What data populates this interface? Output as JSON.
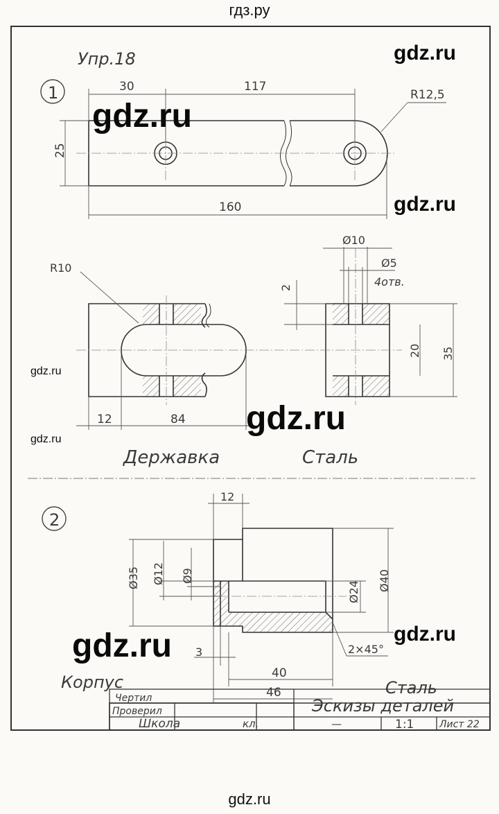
{
  "site": {
    "top_label": "гдз.ру",
    "bottom_label": "gdz.ru"
  },
  "watermarks": [
    "gdz.ru",
    "gdz.ru",
    "gdz.ru",
    "gdz.ru",
    "gdz.ru",
    "gdz.ru",
    "gdz.ru"
  ],
  "exercise": {
    "title": "Упр.18"
  },
  "part1": {
    "number": "1",
    "dims": {
      "d30": "30",
      "d117": "117",
      "r12_5": "R12,5",
      "d25": "25",
      "d160": "160",
      "phi10": "Ø10",
      "phi5": "Ø5",
      "holes": "4отв.",
      "r10": "R10",
      "d2": "2",
      "d20": "20",
      "d35": "35",
      "d12": "12",
      "d84": "84"
    },
    "name": "Державка",
    "material": "Сталь"
  },
  "part2": {
    "number": "2",
    "dims": {
      "d12": "12",
      "phi35": "Ø35",
      "phi12": "Ø12",
      "phi9": "Ø9",
      "phi24": "Ø24",
      "phi40": "Ø40",
      "d3": "3",
      "chamfer": "2×45°",
      "d40": "40",
      "d46": "46"
    },
    "name": "Корпус",
    "material": "Сталь"
  },
  "title_block": {
    "drew": "Чертил",
    "checked": "Проверил",
    "school": "Школа",
    "class": "кл.",
    "title": "Эскизы деталей",
    "dash": "—",
    "scale": "1:1",
    "sheet": "Лист 22"
  }
}
